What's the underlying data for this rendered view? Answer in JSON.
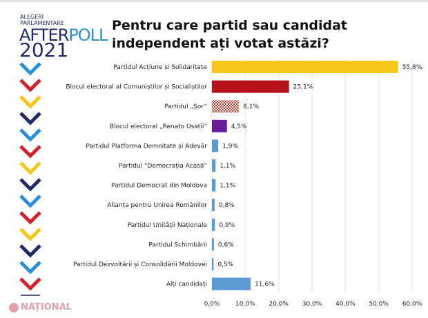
{
  "logo": {
    "line1": "ALEGERI",
    "line2": "PARLAMENTARE",
    "after": "AFTER",
    "poll": "POLL",
    "year": "2021"
  },
  "watermark": "NAȚIONAL",
  "chart_data": {
    "type": "bar",
    "orientation": "horizontal",
    "title": "Pentru care partid sau candidat independent ați votat astăzi?",
    "categories": [
      "Partidul Acțiune și Solidaritate",
      "Blocul electoral al Comuniștilor și Socialiștilor",
      "Partidul „Șor”",
      "Blocul electoral „Renato Usatîi”",
      "Partidul Platforma Demnitate și Adevăr",
      "Partidul “Democrația Acasă”",
      "Partidul Democrat din Moldova",
      "Alianța pentru Unirea Românilor",
      "Partidul Unității Naționale",
      "Partidul Schimbării",
      "Partidul Dezvoltării și Consolidării Moldovei",
      "Alți candidați"
    ],
    "values": [
      55.8,
      23.1,
      8.1,
      4.5,
      1.9,
      1.1,
      1.1,
      0.8,
      0.9,
      0.6,
      0.5,
      11.6
    ],
    "value_labels": [
      "55,8%",
      "23,1%",
      "8,1%",
      "4,5%",
      "1,9%",
      "1,1%",
      "1,1%",
      "0,8%",
      "0,9%",
      "0,6%",
      "0,5%",
      "11,6%"
    ],
    "colors": [
      "#f5c518",
      "#b5121b",
      "checkered-red",
      "#6a1b9a",
      "#5b9bd5",
      "#5b9bd5",
      "#5b9bd5",
      "#5b9bd5",
      "#5b9bd5",
      "#5b9bd5",
      "#5b9bd5",
      "#5b9bd5"
    ],
    "xlim": [
      0,
      60
    ],
    "xticks": [
      "0,0%",
      "10,0%",
      "20,0%",
      "30,0%",
      "40,0%",
      "50,0%",
      "60,0%"
    ],
    "grid": "vertical"
  }
}
